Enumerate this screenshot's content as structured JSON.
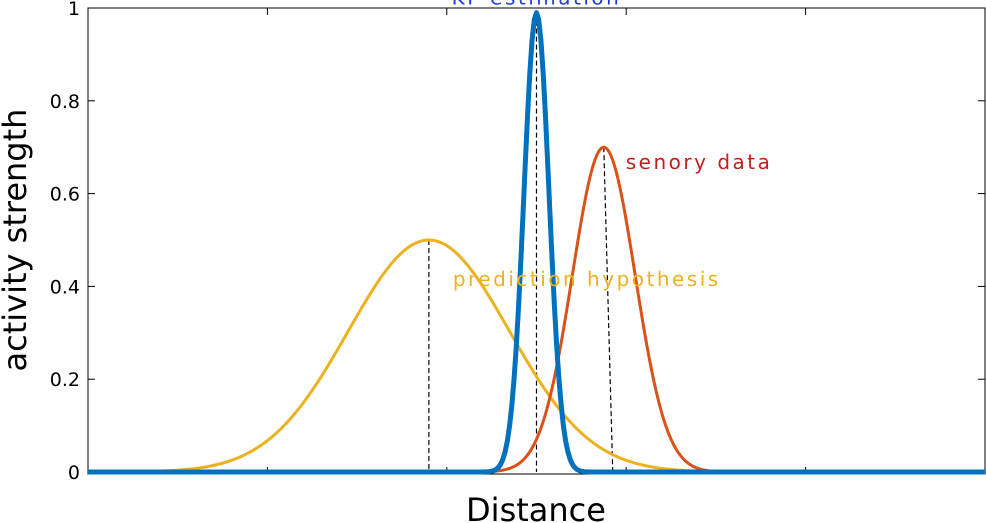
{
  "chart_data": {
    "type": "line",
    "title": "",
    "xlabel": "Distance",
    "ylabel": "activity strength",
    "ylim": [
      0,
      1
    ],
    "xlim": [
      -5,
      5
    ],
    "x_tick_labels_shown": false,
    "yticks": [
      {
        "value": 0,
        "label": "0"
      },
      {
        "value": 0.2,
        "label": "0.2"
      },
      {
        "value": 0.4,
        "label": "0.4"
      },
      {
        "value": 0.6,
        "label": "0.6"
      },
      {
        "value": 0.8,
        "label": "0.8"
      },
      {
        "value": 1,
        "label": "1"
      }
    ],
    "grid": false,
    "legend": "none",
    "series": [
      {
        "name": "prediction hypothesis",
        "color": "#EDB120",
        "shape": "gaussian",
        "peak_x": -1.2,
        "peak_y": 0.5,
        "sigma": 0.9
      },
      {
        "name": "senory data",
        "color": "#D95319",
        "shape": "gaussian",
        "peak_x": 0.75,
        "peak_y": 0.7,
        "sigma": 0.35
      },
      {
        "name": "KF estimation",
        "color": "#0072BD",
        "shape": "gaussian",
        "peak_x": 0.0,
        "peak_y": 0.99,
        "sigma": 0.14
      }
    ],
    "reference_lines": [
      {
        "from": [
          -1.2,
          0.5
        ],
        "to": [
          -1.2,
          0.0
        ]
      },
      {
        "from": [
          0.0,
          0.99
        ],
        "to": [
          0.0,
          0.0
        ]
      },
      {
        "from": [
          0.75,
          0.7
        ],
        "to": [
          0.85,
          0.0
        ]
      }
    ],
    "annotations": [
      {
        "text": "KF estimation",
        "series": 2,
        "color": "#1F3DD6"
      },
      {
        "text": "senory data",
        "series": 1,
        "color": "#C41E1E"
      },
      {
        "text": "prediction hypothesis",
        "series": 0,
        "color": "#EDB120"
      }
    ]
  }
}
